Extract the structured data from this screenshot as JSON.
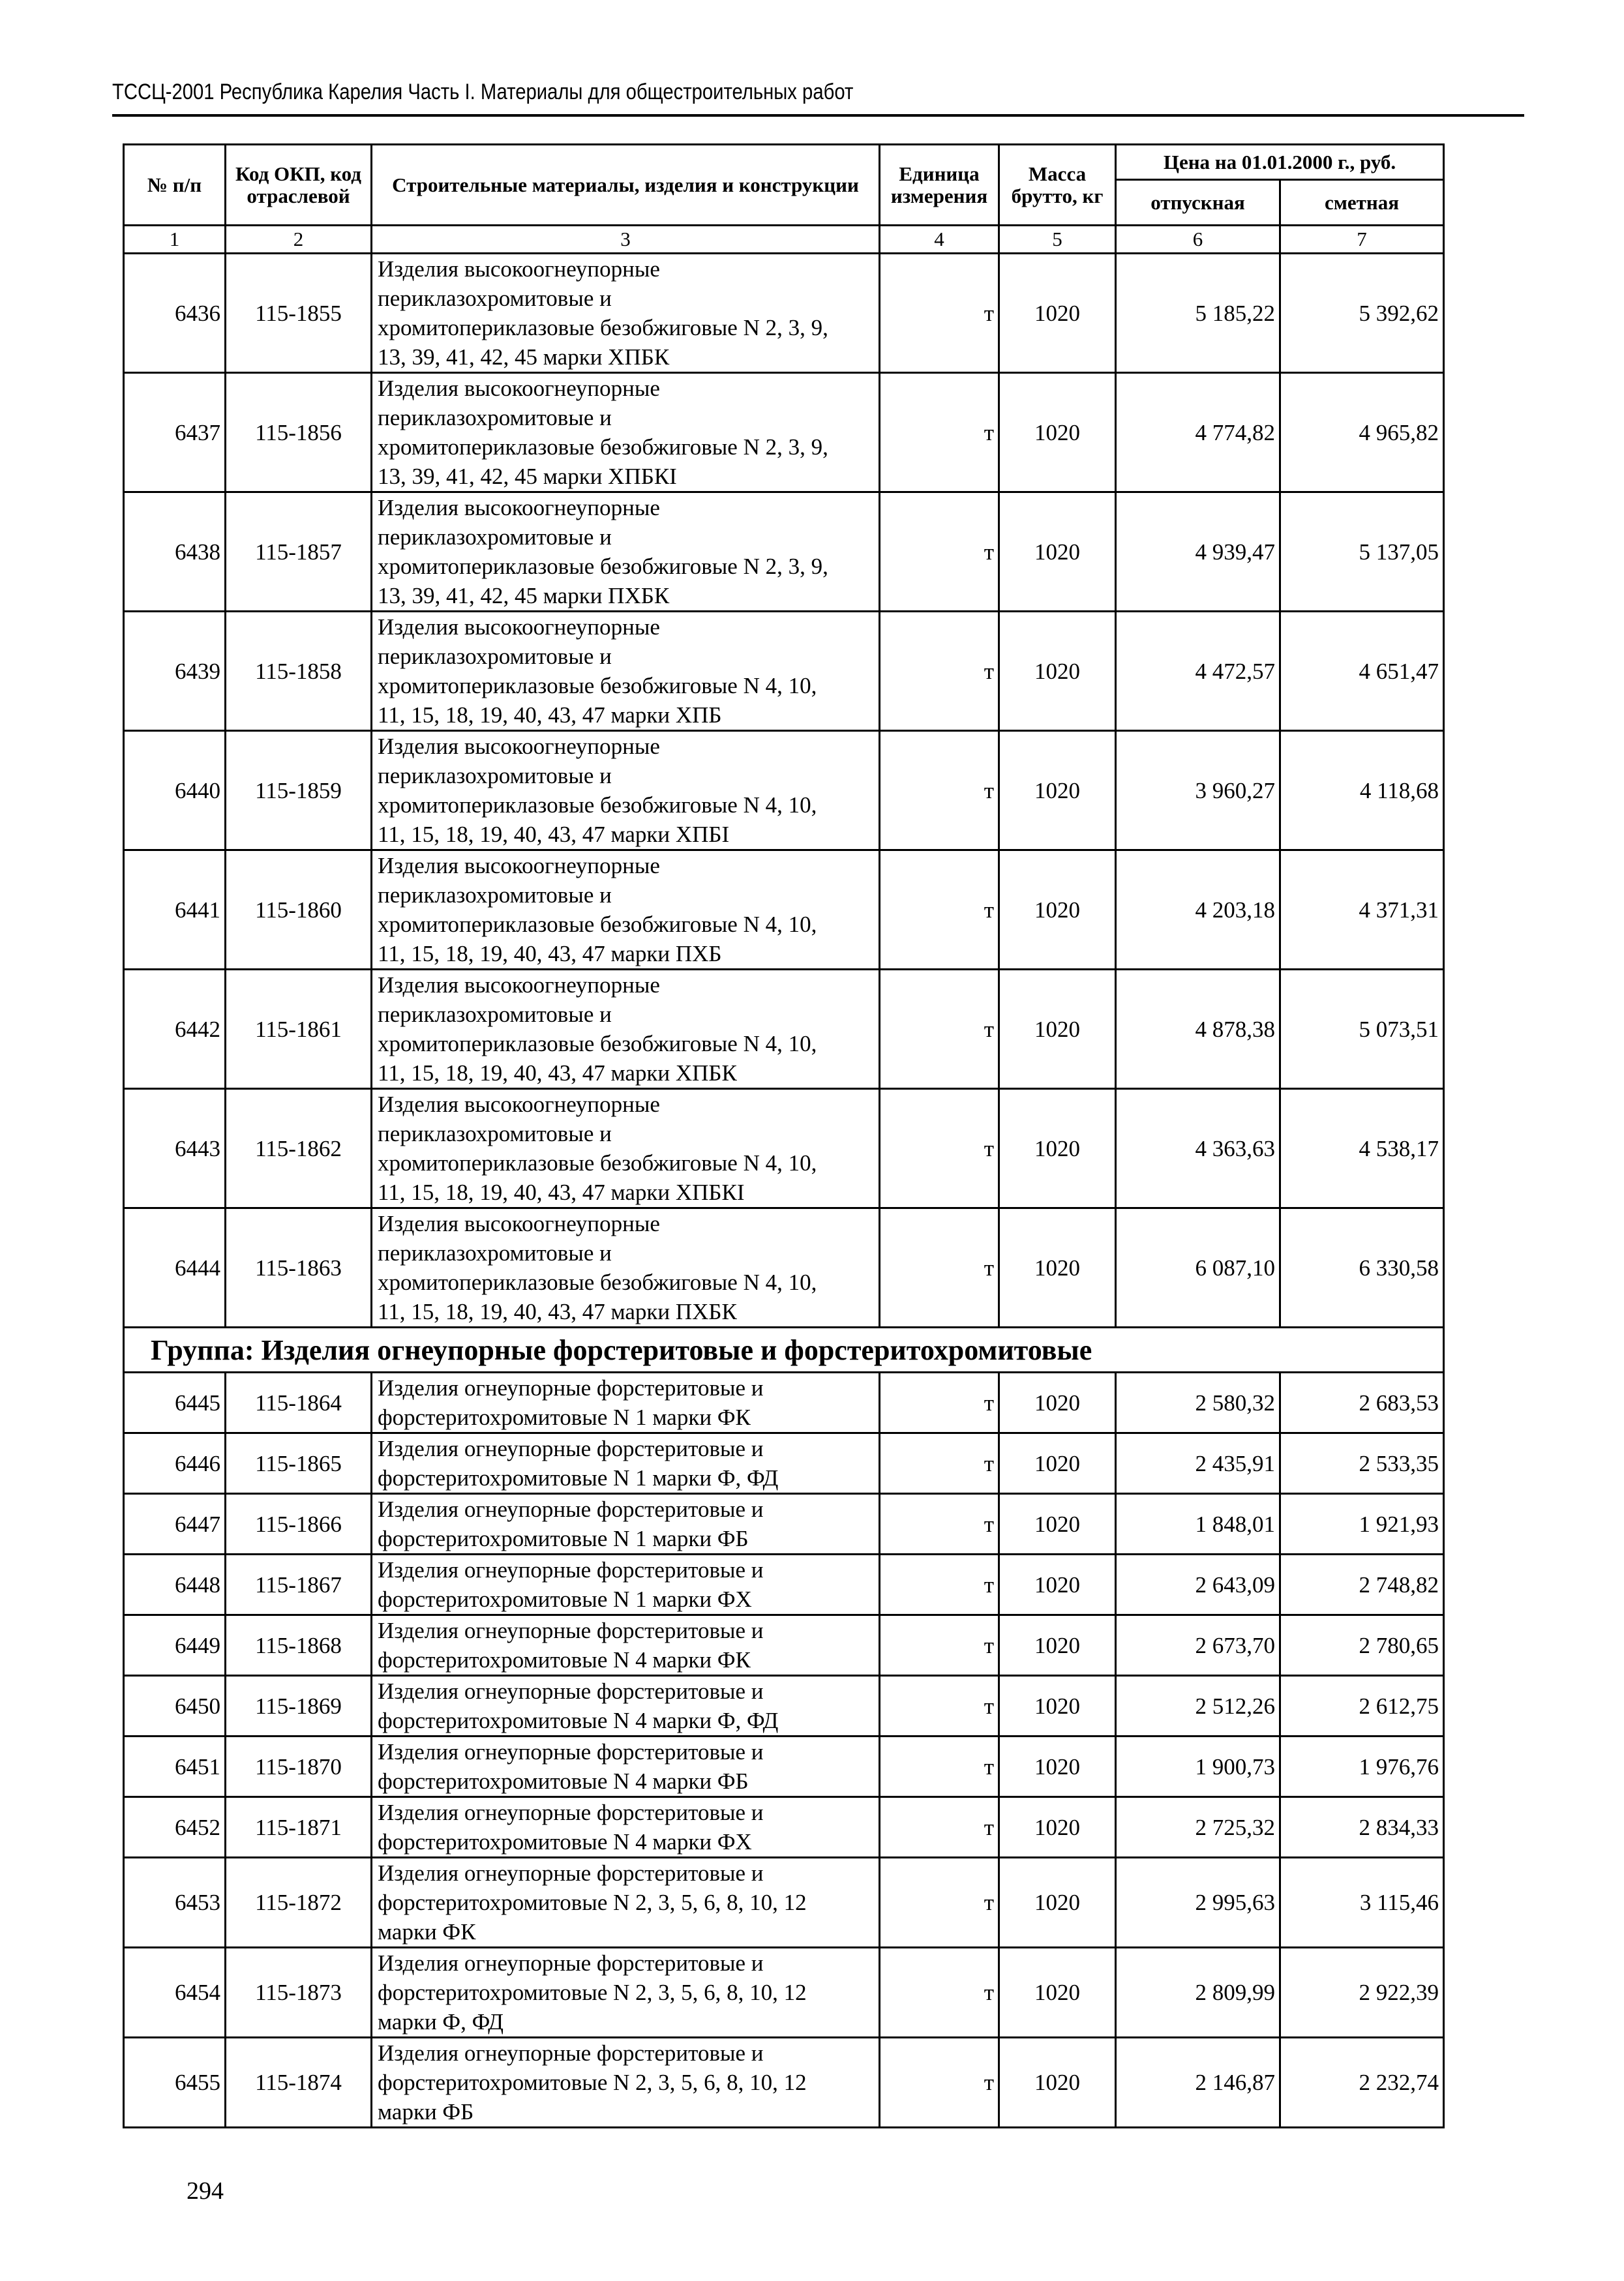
{
  "running_head": "ТССЦ-2001 Республика Карелия Часть I. Материалы для общестроительных работ",
  "page_number": "294",
  "table": {
    "headers": {
      "num": "№ п/п",
      "code": "Код ОКП, код отраслевой",
      "name": "Строительные материалы, изделия и конструкции",
      "unit": "Единица измерения",
      "mass": "Масса брутто, кг",
      "price": "Цена на 01.01.2000 г., руб.",
      "price_release": "отпускная",
      "price_estimate": "сметная"
    },
    "column_numbers": [
      "1",
      "2",
      "3",
      "4",
      "5",
      "6",
      "7"
    ],
    "rows_a": [
      {
        "num": "6436",
        "code": "115-1855",
        "name": "Изделия высокоогнеупорные\nпериклазохромитовые и\nхромитопериклазовые безобжиговые N 2, 3, 9,\n13, 39, 41, 42, 45 марки ХПБК",
        "unit": "т",
        "mass": "1020",
        "release": "5 185,22",
        "estimate": "5 392,62"
      },
      {
        "num": "6437",
        "code": "115-1856",
        "name": "Изделия высокоогнеупорные\nпериклазохромитовые и\nхромитопериклазовые безобжиговые N 2, 3, 9,\n13, 39, 41, 42, 45 марки ХПБКI",
        "unit": "т",
        "mass": "1020",
        "release": "4 774,82",
        "estimate": "4 965,82"
      },
      {
        "num": "6438",
        "code": "115-1857",
        "name": "Изделия высокоогнеупорные\nпериклазохромитовые и\nхромитопериклазовые безобжиговые N 2, 3, 9,\n13, 39, 41, 42, 45 марки ПХБК",
        "unit": "т",
        "mass": "1020",
        "release": "4 939,47",
        "estimate": "5 137,05"
      },
      {
        "num": "6439",
        "code": "115-1858",
        "name": "Изделия высокоогнеупорные\nпериклазохромитовые и\nхромитопериклазовые безобжиговые N 4, 10,\n11, 15, 18, 19, 40, 43, 47 марки ХПБ",
        "unit": "т",
        "mass": "1020",
        "release": "4 472,57",
        "estimate": "4 651,47"
      },
      {
        "num": "6440",
        "code": "115-1859",
        "name": "Изделия высокоогнеупорные\nпериклазохромитовые и\nхромитопериклазовые безобжиговые N 4, 10,\n11, 15, 18, 19, 40, 43, 47 марки ХПБI",
        "unit": "т",
        "mass": "1020",
        "release": "3 960,27",
        "estimate": "4 118,68"
      },
      {
        "num": "6441",
        "code": "115-1860",
        "name": "Изделия высокоогнеупорные\nпериклазохромитовые и\nхромитопериклазовые безобжиговые N 4, 10,\n11, 15, 18, 19, 40, 43, 47 марки ПХБ",
        "unit": "т",
        "mass": "1020",
        "release": "4 203,18",
        "estimate": "4 371,31"
      },
      {
        "num": "6442",
        "code": "115-1861",
        "name": "Изделия высокоогнеупорные\nпериклазохромитовые и\nхромитопериклазовые безобжиговые N 4, 10,\n11, 15, 18, 19, 40, 43, 47 марки ХПБК",
        "unit": "т",
        "mass": "1020",
        "release": "4 878,38",
        "estimate": "5 073,51"
      },
      {
        "num": "6443",
        "code": "115-1862",
        "name": "Изделия высокоогнеупорные\nпериклазохромитовые и\nхромитопериклазовые безобжиговые N 4, 10,\n11, 15, 18, 19, 40, 43, 47 марки ХПБКI",
        "unit": "т",
        "mass": "1020",
        "release": "4 363,63",
        "estimate": "4 538,17"
      },
      {
        "num": "6444",
        "code": "115-1863",
        "name": "Изделия высокоогнеупорные\nпериклазохромитовые и\nхромитопериклазовые безобжиговые N 4, 10,\n11, 15, 18, 19, 40, 43, 47 марки ПХБК",
        "unit": "т",
        "mass": "1020",
        "release": "6 087,10",
        "estimate": "6 330,58"
      }
    ],
    "group_title": "Группа: Изделия огнеупорные форстеритовые и форстеритохромитовые",
    "rows_b": [
      {
        "num": "6445",
        "code": "115-1864",
        "name": "Изделия огнеупорные форстеритовые и\nфорстеритохромитовые N 1 марки ФК",
        "unit": "т",
        "mass": "1020",
        "release": "2 580,32",
        "estimate": "2 683,53"
      },
      {
        "num": "6446",
        "code": "115-1865",
        "name": "Изделия огнеупорные форстеритовые и\nфорстеритохромитовые N 1 марки Ф, ФД",
        "unit": "т",
        "mass": "1020",
        "release": "2 435,91",
        "estimate": "2 533,35"
      },
      {
        "num": "6447",
        "code": "115-1866",
        "name": "Изделия огнеупорные форстеритовые и\nфорстеритохромитовые N 1 марки ФБ",
        "unit": "т",
        "mass": "1020",
        "release": "1 848,01",
        "estimate": "1 921,93"
      },
      {
        "num": "6448",
        "code": "115-1867",
        "name": "Изделия огнеупорные форстеритовые и\nфорстеритохромитовые N 1 марки ФХ",
        "unit": "т",
        "mass": "1020",
        "release": "2 643,09",
        "estimate": "2 748,82"
      },
      {
        "num": "6449",
        "code": "115-1868",
        "name": "Изделия огнеупорные форстеритовые и\nфорстеритохромитовые N 4 марки ФК",
        "unit": "т",
        "mass": "1020",
        "release": "2 673,70",
        "estimate": "2 780,65"
      },
      {
        "num": "6450",
        "code": "115-1869",
        "name": "Изделия огнеупорные форстеритовые и\nфорстеритохромитовые N 4 марки Ф, ФД",
        "unit": "т",
        "mass": "1020",
        "release": "2 512,26",
        "estimate": "2 612,75"
      },
      {
        "num": "6451",
        "code": "115-1870",
        "name": "Изделия огнеупорные форстеритовые и\nфорстеритохромитовые N 4 марки ФБ",
        "unit": "т",
        "mass": "1020",
        "release": "1 900,73",
        "estimate": "1 976,76"
      },
      {
        "num": "6452",
        "code": "115-1871",
        "name": "Изделия огнеупорные форстеритовые и\nфорстеритохромитовые N 4 марки ФХ",
        "unit": "т",
        "mass": "1020",
        "release": "2 725,32",
        "estimate": "2 834,33"
      },
      {
        "num": "6453",
        "code": "115-1872",
        "name": "Изделия огнеупорные форстеритовые и\nфорстеритохромитовые N 2, 3, 5, 6, 8, 10, 12\nмарки ФК",
        "unit": "т",
        "mass": "1020",
        "release": "2 995,63",
        "estimate": "3 115,46"
      },
      {
        "num": "6454",
        "code": "115-1873",
        "name": "Изделия огнеупорные форстеритовые и\nфорстеритохромитовые N 2, 3, 5, 6, 8, 10, 12\nмарки Ф, ФД",
        "unit": "т",
        "mass": "1020",
        "release": "2 809,99",
        "estimate": "2 922,39"
      },
      {
        "num": "6455",
        "code": "115-1874",
        "name": "Изделия огнеупорные форстеритовые и\nфорстеритохромитовые N 2, 3, 5, 6, 8, 10, 12\nмарки ФБ",
        "unit": "т",
        "mass": "1020",
        "release": "2 146,87",
        "estimate": "2 232,74"
      }
    ]
  }
}
